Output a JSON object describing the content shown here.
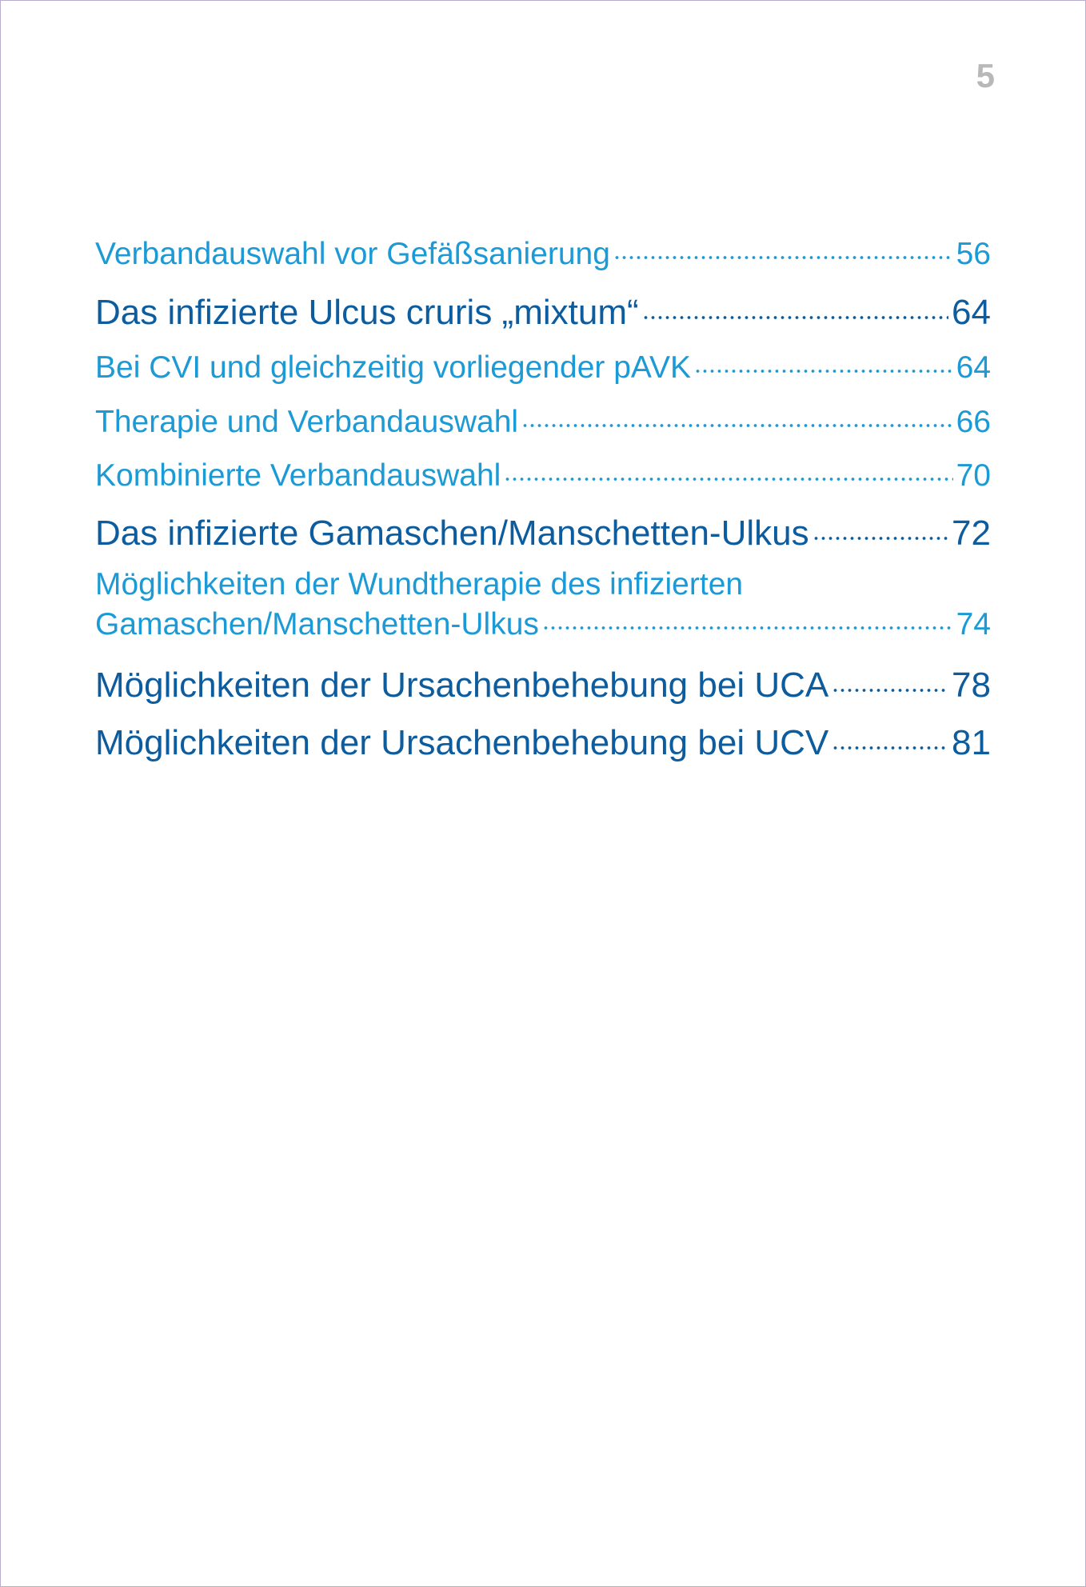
{
  "page_number": "5",
  "toc": {
    "entries": [
      {
        "lines": [
          "Verbandauswahl vor Gefäßsanierung"
        ],
        "page": "56",
        "level": 2,
        "color": "#1c9ad6"
      },
      {
        "lines": [
          "Das infizierte Ulcus cruris „mixtum“"
        ],
        "page": "64",
        "level": 1,
        "color": "#0d5c9e"
      },
      {
        "lines": [
          "Bei CVI und gleichzeitig vorliegender pAVK"
        ],
        "page": "64",
        "level": 2,
        "color": "#1c9ad6"
      },
      {
        "lines": [
          "Therapie und Verbandauswahl"
        ],
        "page": "66",
        "level": 2,
        "color": "#1c9ad6"
      },
      {
        "lines": [
          "Kombinierte Verbandauswahl"
        ],
        "page": "70",
        "level": 2,
        "color": "#1c9ad6"
      },
      {
        "lines": [
          "Das infizierte Gamaschen/Manschetten-Ulkus"
        ],
        "page": "72",
        "level": 1,
        "color": "#0d5c9e"
      },
      {
        "lines": [
          "Möglichkeiten der Wundtherapie des infizierten",
          "Gamaschen/Manschetten-Ulkus"
        ],
        "page": "74",
        "level": 2,
        "color": "#1c9ad6"
      },
      {
        "lines": [
          "Möglichkeiten der Ursachenbehebung bei UCA"
        ],
        "page": "78",
        "level": 1,
        "color": "#0d5c9e"
      },
      {
        "lines": [
          "Möglichkeiten der Ursachenbehebung bei UCV"
        ],
        "page": "81",
        "level": 1,
        "color": "#0d5c9e"
      }
    ]
  }
}
